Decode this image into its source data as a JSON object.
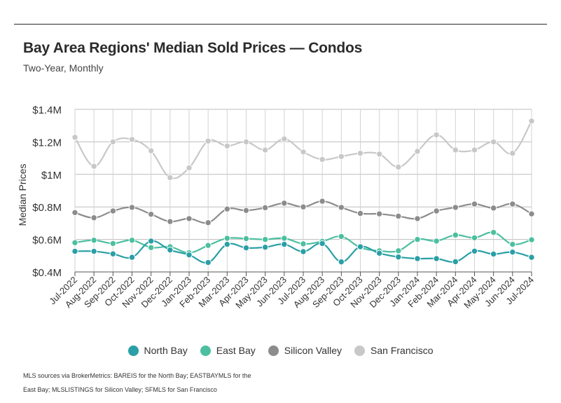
{
  "title": "Bay Area Regions' Median Sold Prices — Condos",
  "subtitle": "Two-Year, Monthly",
  "footnote": "MLS sources via BrokerMetrics: BAREIS for the North Bay; EASTBAYMLS for the East Bay; MLSLISTINGS for Silicon Valley; SFMLS for San Francisco",
  "chart_data": {
    "type": "line",
    "title": "Bay Area Regions' Median Sold Prices — Condos",
    "subtitle": "Two-Year, Monthly",
    "xlabel": "",
    "ylabel": "Median Prices",
    "ylim": [
      400000,
      1400000
    ],
    "yticks": [
      400000,
      600000,
      800000,
      1000000,
      1200000,
      1400000
    ],
    "ytick_labels": [
      "$0.4M",
      "$0.6M",
      "$0.8M",
      "$1M",
      "$1.2M",
      "$1.4M"
    ],
    "grid": true,
    "legend": "bottom",
    "categories": [
      "Jul-2022",
      "Aug-2022",
      "Sep-2022",
      "Oct-2022",
      "Nov-2022",
      "Dec-2022",
      "Jan-2023",
      "Feb-2023",
      "Mar-2023",
      "Apr-2023",
      "May-2023",
      "Jun-2023",
      "Jul-2023",
      "Aug-2023",
      "Sep-2023",
      "Oct-2023",
      "Nov-2023",
      "Dec-2023",
      "Jan-2024",
      "Feb-2024",
      "Mar-2024",
      "Apr-2024",
      "May-2024",
      "Jun-2024",
      "Jul-2024"
    ],
    "series": [
      {
        "name": "North Bay",
        "color": "#2a9fa6",
        "values": [
          527000,
          527000,
          511000,
          490000,
          590000,
          535000,
          505000,
          458000,
          570000,
          548000,
          552000,
          570000,
          525000,
          575000,
          462000,
          555000,
          515000,
          492000,
          482000,
          482000,
          463000,
          528000,
          510000,
          522000,
          490000
        ]
      },
      {
        "name": "East Bay",
        "color": "#4cbfa0",
        "values": [
          580000,
          595000,
          575000,
          595000,
          550000,
          555000,
          518000,
          563000,
          607000,
          605000,
          600000,
          607000,
          573000,
          588000,
          618000,
          550000,
          530000,
          530000,
          600000,
          590000,
          627000,
          610000,
          643000,
          570000,
          598000
        ]
      },
      {
        "name": "Silicon Valley",
        "color": "#8c8c8c",
        "values": [
          765000,
          733000,
          775000,
          797000,
          755000,
          710000,
          728000,
          703000,
          787000,
          778000,
          795000,
          823000,
          800000,
          835000,
          797000,
          760000,
          757000,
          743000,
          728000,
          775000,
          797000,
          818000,
          793000,
          818000,
          757000
        ]
      },
      {
        "name": "San Francisco",
        "color": "#c8c8c8",
        "values": [
          1228000,
          1050000,
          1200000,
          1215000,
          1145000,
          980000,
          1040000,
          1205000,
          1175000,
          1200000,
          1150000,
          1218000,
          1138000,
          1092000,
          1110000,
          1130000,
          1125000,
          1045000,
          1142000,
          1243000,
          1150000,
          1150000,
          1200000,
          1130000,
          1328000
        ]
      }
    ]
  }
}
